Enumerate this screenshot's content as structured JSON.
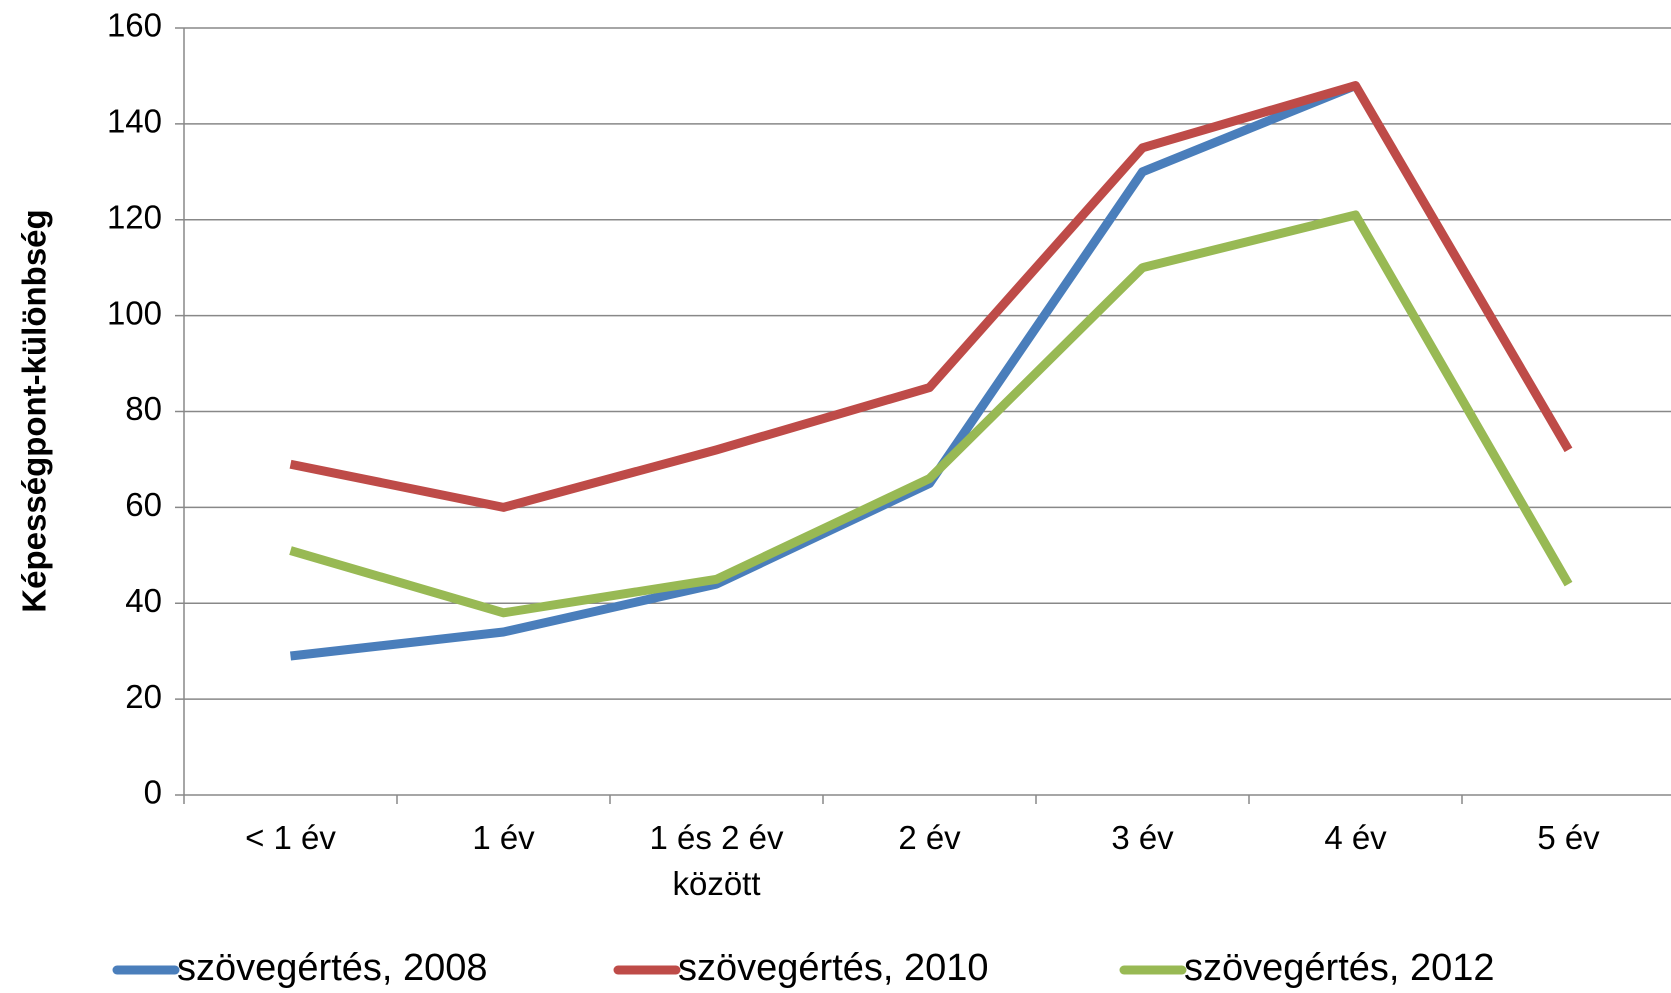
{
  "chart_data": {
    "type": "line",
    "y_label": "Képességpont-különbség",
    "categories": [
      "< 1 év",
      "1 év",
      "1 és 2 év között",
      "2 év",
      "3 év",
      "4 év",
      "5 év"
    ],
    "series": [
      {
        "name": "szövegértés, 2008",
        "color": "#4a7ebb",
        "values": [
          29,
          34,
          44,
          65,
          130,
          148,
          null
        ]
      },
      {
        "name": "szövegértés, 2010",
        "color": "#be4b48",
        "values": [
          69,
          60,
          72,
          85,
          135,
          148,
          72
        ]
      },
      {
        "name": "szövegértés, 2012",
        "color": "#98b954",
        "values": [
          51,
          38,
          45,
          66,
          110,
          121,
          44
        ]
      }
    ],
    "ylim": [
      0,
      160
    ],
    "yticks": [
      0,
      20,
      40,
      60,
      80,
      100,
      120,
      140,
      160
    ],
    "grid": true
  }
}
